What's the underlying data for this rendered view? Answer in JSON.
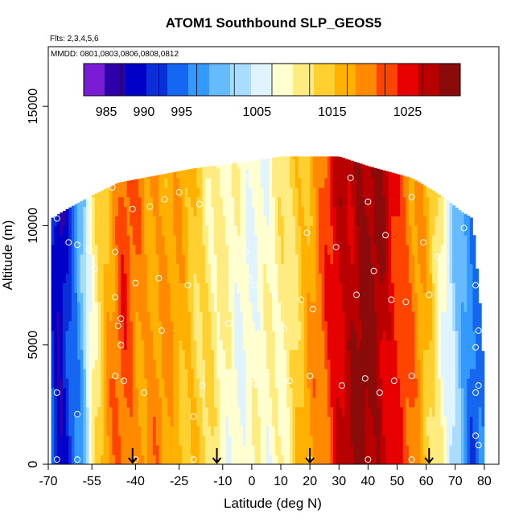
{
  "chart_data": {
    "type": "heatmap",
    "title": "ATOM1 Southbound SLP_GEOS5",
    "notes": [
      "Flts: 2,3,4,5,6",
      "MMDD: 0801,0803,0806,0808,0812"
    ],
    "xlabel": "Latitude (deg N)",
    "ylabel": "Altitude (m)",
    "xlim": [
      -70,
      85
    ],
    "ylim": [
      0,
      17500
    ],
    "x_ticks": [
      -70,
      -55,
      -40,
      -25,
      -10,
      0,
      10,
      20,
      30,
      40,
      50,
      60,
      70,
      80
    ],
    "x_tick_labels": [
      "-70",
      "-55",
      "-40",
      "-25",
      "-10",
      "0",
      "10",
      "20",
      "30",
      "40",
      "50",
      "60",
      "70",
      "80"
    ],
    "y_ticks": [
      0,
      5000,
      10000,
      15000
    ],
    "y_tick_labels": [
      "0",
      "5000",
      "10000",
      "15000"
    ],
    "colorbar": {
      "min": 982,
      "max": 1032,
      "ticks": [
        985,
        990,
        995,
        1005,
        1015,
        1025
      ],
      "tick_labels": [
        "985",
        "990",
        "995",
        "1005",
        "1015",
        "1025"
      ],
      "colors": [
        "#7a1bd6",
        "#2d00a8",
        "#0000c8",
        "#0a2fd8",
        "#1566f0",
        "#3399ff",
        "#66bbff",
        "#a9dcff",
        "#dff4ff",
        "#ffffd0",
        "#ffec80",
        "#ffd030",
        "#ffb000",
        "#ff8a00",
        "#ff4400",
        "#e60000",
        "#b80000",
        "#8b0a0a"
      ]
    },
    "column_tops": [
      {
        "lat": -69,
        "top": 10300
      },
      {
        "lat": -62,
        "top": 10800
      },
      {
        "lat": -56,
        "top": 11200
      },
      {
        "lat": -46,
        "top": 11800
      },
      {
        "lat": -20,
        "top": 12400
      },
      {
        "lat": 0,
        "top": 12700
      },
      {
        "lat": 10,
        "top": 12900
      },
      {
        "lat": 30,
        "top": 12900
      },
      {
        "lat": 40,
        "top": 12500
      },
      {
        "lat": 55,
        "top": 12000
      },
      {
        "lat": 62,
        "top": 11500
      },
      {
        "lat": 68,
        "top": 11000
      },
      {
        "lat": 72,
        "top": 10600
      },
      {
        "lat": 76,
        "top": 10300
      },
      {
        "lat": 78,
        "top": 7500
      },
      {
        "lat": 79,
        "top": 6000
      },
      {
        "lat": 80,
        "top": 3500
      }
    ],
    "slp_profile": [
      {
        "lat": -69,
        "slp": 993
      },
      {
        "lat": -66,
        "slp": 987
      },
      {
        "lat": -62,
        "slp": 993
      },
      {
        "lat": -58,
        "slp": 1000
      },
      {
        "lat": -55,
        "slp": 1010
      },
      {
        "lat": -50,
        "slp": 1017
      },
      {
        "lat": -44,
        "slp": 1022
      },
      {
        "lat": -38,
        "slp": 1019
      },
      {
        "lat": -30,
        "slp": 1018
      },
      {
        "lat": -20,
        "slp": 1015
      },
      {
        "lat": -12,
        "slp": 1010
      },
      {
        "lat": -5,
        "slp": 1008
      },
      {
        "lat": 5,
        "slp": 1008
      },
      {
        "lat": 12,
        "slp": 1011
      },
      {
        "lat": 18,
        "slp": 1016
      },
      {
        "lat": 24,
        "slp": 1020
      },
      {
        "lat": 30,
        "slp": 1027
      },
      {
        "lat": 38,
        "slp": 1030
      },
      {
        "lat": 44,
        "slp": 1029
      },
      {
        "lat": 50,
        "slp": 1024
      },
      {
        "lat": 56,
        "slp": 1019
      },
      {
        "lat": 62,
        "slp": 1014
      },
      {
        "lat": 67,
        "slp": 1007
      },
      {
        "lat": 72,
        "slp": 999
      },
      {
        "lat": 76,
        "slp": 994
      },
      {
        "lat": 80,
        "slp": 997
      }
    ],
    "arrows_lat": [
      -41,
      -12,
      20,
      61
    ],
    "circles": [
      {
        "lat": -67,
        "alt": 10300
      },
      {
        "lat": -63,
        "alt": 9300
      },
      {
        "lat": -60,
        "alt": 9200
      },
      {
        "lat": -56,
        "alt": 9000
      },
      {
        "lat": -54,
        "alt": 8200
      },
      {
        "lat": -48,
        "alt": 11600
      },
      {
        "lat": -47,
        "alt": 8900
      },
      {
        "lat": -47,
        "alt": 7000
      },
      {
        "lat": -45,
        "alt": 6100
      },
      {
        "lat": -46,
        "alt": 5800
      },
      {
        "lat": -45,
        "alt": 5000
      },
      {
        "lat": -47,
        "alt": 3700
      },
      {
        "lat": -44,
        "alt": 3500
      },
      {
        "lat": -41,
        "alt": 10700
      },
      {
        "lat": -40,
        "alt": 7600
      },
      {
        "lat": -37,
        "alt": 3000
      },
      {
        "lat": -35,
        "alt": 10800
      },
      {
        "lat": -32,
        "alt": 7800
      },
      {
        "lat": -31,
        "alt": 5600
      },
      {
        "lat": -30,
        "alt": 11100
      },
      {
        "lat": -25,
        "alt": 11400
      },
      {
        "lat": -22,
        "alt": 7500
      },
      {
        "lat": -20,
        "alt": 2000
      },
      {
        "lat": -18,
        "alt": 10900
      },
      {
        "lat": -17,
        "alt": 3300
      },
      {
        "lat": -8,
        "alt": 5900
      },
      {
        "lat": -2,
        "alt": 8900
      },
      {
        "lat": -1,
        "alt": 12000
      },
      {
        "lat": -1,
        "alt": 7800
      },
      {
        "lat": 0,
        "alt": 3600
      },
      {
        "lat": 1,
        "alt": 7500
      },
      {
        "lat": 1,
        "alt": 3400
      },
      {
        "lat": 8,
        "alt": 7100
      },
      {
        "lat": 11,
        "alt": 5700
      },
      {
        "lat": 13,
        "alt": 3500
      },
      {
        "lat": 17,
        "alt": 6900
      },
      {
        "lat": 19,
        "alt": 9700
      },
      {
        "lat": 20,
        "alt": 3700
      },
      {
        "lat": 21,
        "alt": 6500
      },
      {
        "lat": 29,
        "alt": 9100
      },
      {
        "lat": 31,
        "alt": 3300
      },
      {
        "lat": 34,
        "alt": 12000
      },
      {
        "lat": 36,
        "alt": 7100
      },
      {
        "lat": 39,
        "alt": 3600
      },
      {
        "lat": 40,
        "alt": 11000
      },
      {
        "lat": 42,
        "alt": 8100
      },
      {
        "lat": 44,
        "alt": 3000
      },
      {
        "lat": 46,
        "alt": 9600
      },
      {
        "lat": 48,
        "alt": 6900
      },
      {
        "lat": 49,
        "alt": 3500
      },
      {
        "lat": 53,
        "alt": 6800
      },
      {
        "lat": 55,
        "alt": 11200
      },
      {
        "lat": 55,
        "alt": 3700
      },
      {
        "lat": 59,
        "alt": 9300
      },
      {
        "lat": 61,
        "alt": 7100
      },
      {
        "lat": 64,
        "alt": 8700
      },
      {
        "lat": 73,
        "alt": 9900
      },
      {
        "lat": 77,
        "alt": 7500
      },
      {
        "lat": 78,
        "alt": 5600
      },
      {
        "lat": 77,
        "alt": 4900
      },
      {
        "lat": 78,
        "alt": 3300
      },
      {
        "lat": 77,
        "alt": 3000
      },
      {
        "lat": 77,
        "alt": 1200
      },
      {
        "lat": 78,
        "alt": 800
      },
      {
        "lat": -60,
        "alt": 2100
      },
      {
        "lat": -67,
        "alt": 3000
      },
      {
        "lat": -67,
        "alt": 200
      },
      {
        "lat": -60,
        "alt": 200
      },
      {
        "lat": -40,
        "alt": 200
      },
      {
        "lat": -20,
        "alt": 200
      },
      {
        "lat": 0,
        "alt": 200
      },
      {
        "lat": 20,
        "alt": 200
      },
      {
        "lat": 40,
        "alt": 200
      },
      {
        "lat": 55,
        "alt": 200
      }
    ]
  }
}
